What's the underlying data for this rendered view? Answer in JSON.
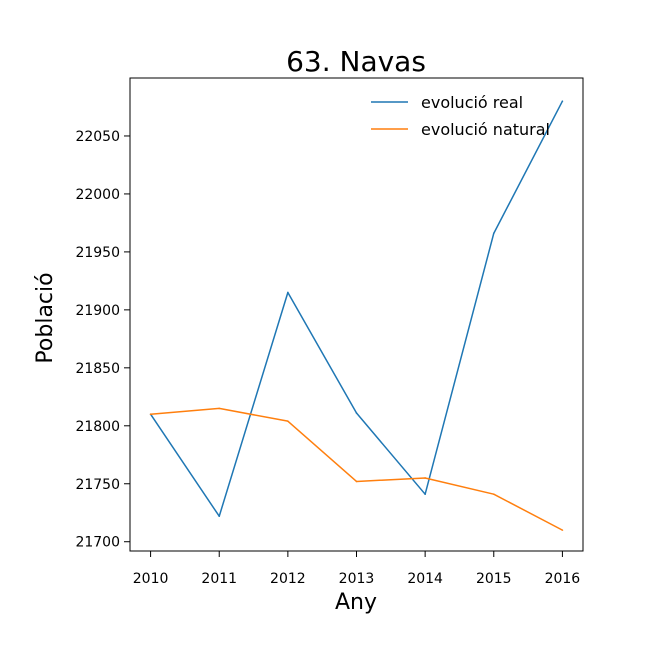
{
  "chart_data": {
    "type": "line",
    "title": "63. Navas",
    "xlabel": "Any",
    "ylabel": "Població",
    "x": [
      2010,
      2011,
      2012,
      2013,
      2014,
      2015,
      2016
    ],
    "x_tick_labels": [
      "2010",
      "2011",
      "2012",
      "2013",
      "2014",
      "2015",
      "2016"
    ],
    "y_ticks": [
      21700,
      21750,
      21800,
      21850,
      21900,
      21950,
      22000,
      22050
    ],
    "y_tick_labels": [
      "21700",
      "21750",
      "21800",
      "21850",
      "21900",
      "21950",
      "22000",
      "22050"
    ],
    "xlim": [
      2009.7,
      2016.3
    ],
    "ylim": [
      21692,
      22100
    ],
    "grid": false,
    "legend_position": "top-right",
    "series": [
      {
        "name": "evolució real",
        "color": "#1f77b4",
        "values": [
          21810,
          21722,
          21915,
          21811,
          21741,
          21966,
          22080
        ]
      },
      {
        "name": "evolució natural",
        "color": "#ff7f0e",
        "values": [
          21810,
          21815,
          21804,
          21752,
          21755,
          21741,
          21710
        ]
      }
    ]
  }
}
